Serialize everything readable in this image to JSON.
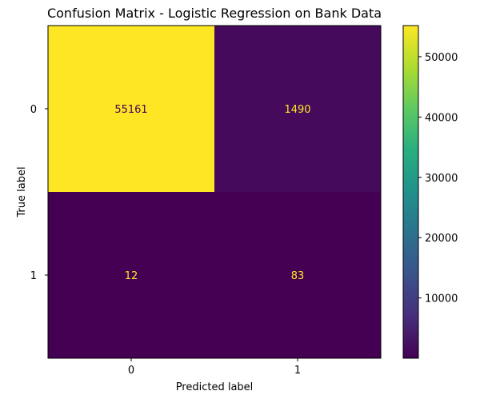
{
  "chart_data": {
    "type": "heatmap",
    "title": "Confusion Matrix - Logistic Regression on Bank Data",
    "xlabel": "Predicted label",
    "ylabel": "True label",
    "x_categories": [
      "0",
      "1"
    ],
    "y_categories": [
      "0",
      "1"
    ],
    "matrix": [
      [
        55161,
        1490
      ],
      [
        12,
        83
      ]
    ],
    "colormap": "viridis",
    "colorbar": {
      "min": 12,
      "max": 55161,
      "ticks": [
        10000,
        20000,
        30000,
        40000,
        50000
      ],
      "tick_labels": [
        "10000",
        "20000",
        "30000",
        "40000",
        "50000"
      ]
    },
    "annotation_colors": {
      "on_light": "#440154",
      "on_dark": "#fde725"
    }
  }
}
